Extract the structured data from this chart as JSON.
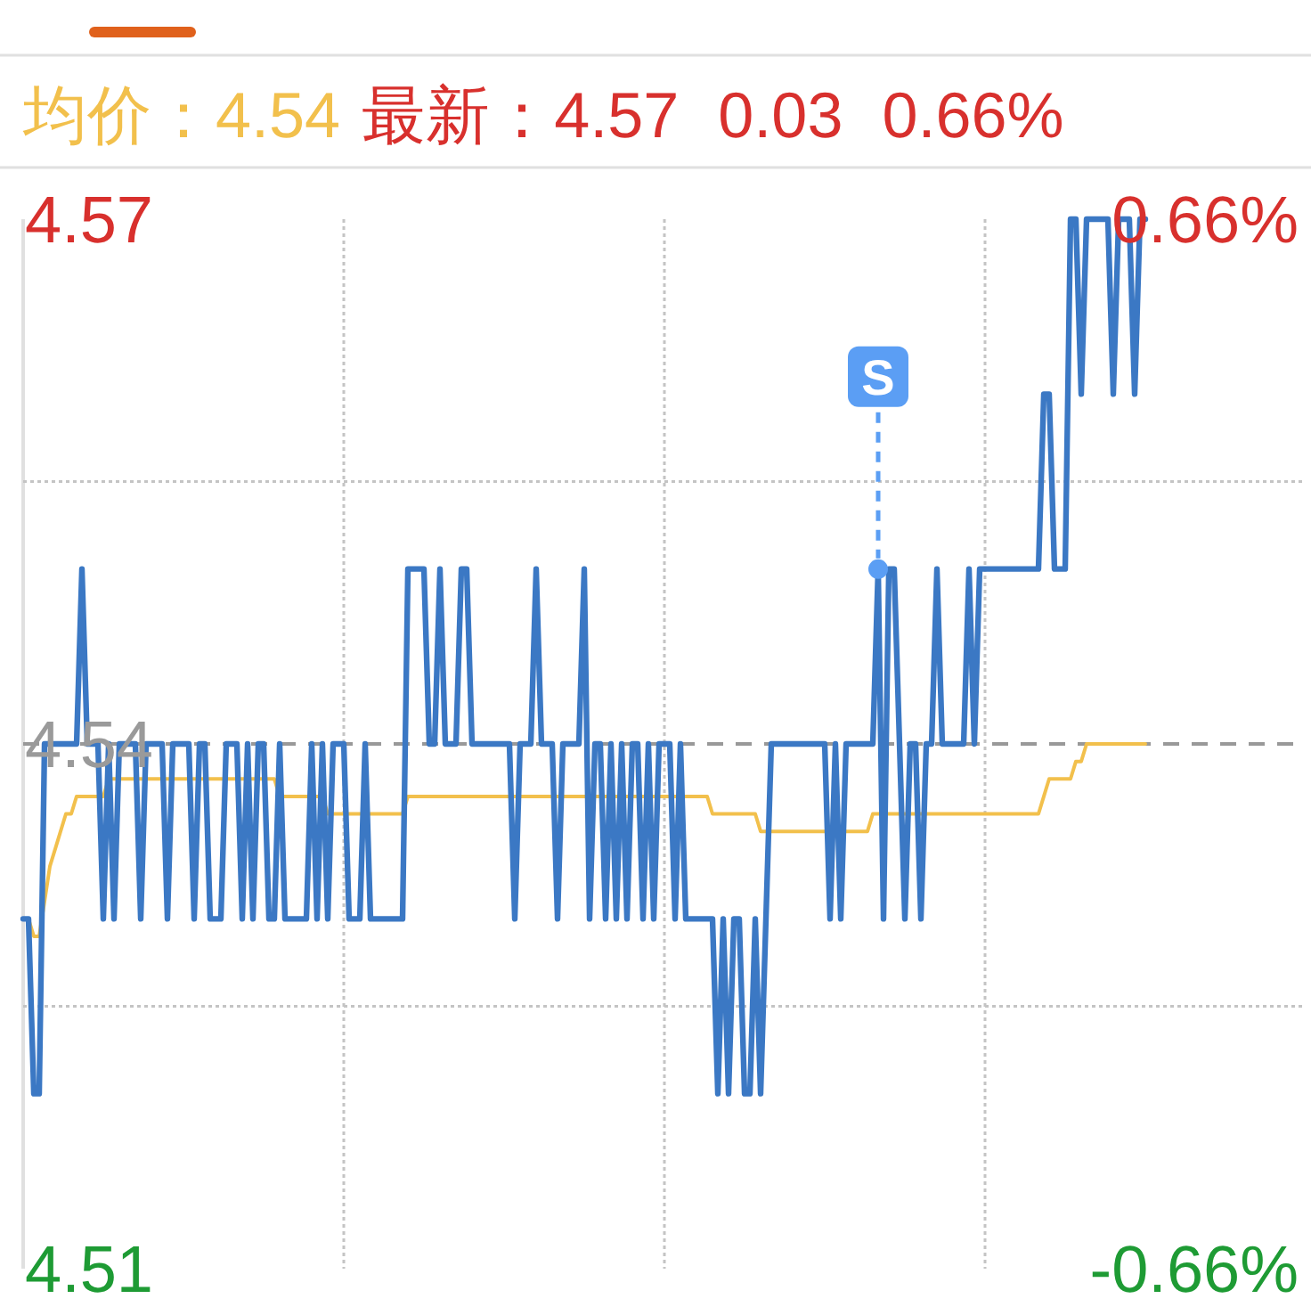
{
  "chart_data": {
    "type": "line",
    "annotations": [
      "均价：4.54",
      "最新：4.57",
      "0.03",
      "0.66%"
    ],
    "categories": [
      null,
      null,
      null,
      null,
      null,
      null,
      null,
      null,
      null,
      null,
      null,
      null,
      null,
      null,
      null,
      null,
      null,
      null,
      null,
      null,
      null,
      null,
      null,
      null,
      null,
      null,
      null,
      null,
      null,
      null,
      null,
      null,
      null,
      null,
      null,
      null,
      null,
      null,
      null,
      null,
      null,
      null,
      null,
      null,
      null,
      null,
      null,
      null,
      null,
      null,
      null,
      null,
      null,
      null,
      null,
      null,
      null,
      null,
      null,
      null,
      null,
      null,
      null,
      null,
      null,
      null,
      null,
      null,
      null,
      null,
      null,
      null,
      null,
      null,
      null,
      null,
      null,
      null,
      null,
      null,
      null,
      null,
      null,
      null,
      null,
      null,
      null,
      null,
      null,
      null,
      null,
      null,
      null,
      null,
      null,
      null,
      null,
      null,
      null,
      null,
      null,
      null,
      null,
      null,
      null,
      null,
      null,
      null,
      null,
      null,
      null,
      null,
      null,
      null,
      null,
      null,
      null,
      null,
      null,
      null,
      null,
      null,
      null,
      null,
      null,
      null,
      null,
      null,
      null,
      null,
      null,
      null,
      null,
      null,
      null,
      null,
      null,
      null,
      null,
      null,
      null,
      null,
      null,
      null,
      null,
      null,
      null,
      null,
      null,
      null,
      null,
      null,
      null,
      null,
      null,
      null,
      null,
      null,
      null,
      null,
      null,
      null,
      null,
      null,
      null,
      null,
      null,
      null,
      null,
      null,
      null,
      null,
      null,
      null,
      null,
      null,
      null,
      null,
      null,
      null,
      null,
      null,
      null,
      null,
      null,
      null,
      null,
      null,
      null,
      null,
      null,
      null,
      null,
      null,
      null,
      null,
      null,
      null,
      null,
      null,
      null,
      null,
      null,
      null,
      null,
      null,
      null,
      null,
      null,
      null,
      null,
      null,
      null,
      null,
      null,
      null,
      null,
      null,
      null,
      null,
      null,
      null,
      null,
      null,
      null,
      null,
      null,
      null,
      null,
      null,
      null,
      null,
      null,
      null,
      null,
      null,
      null,
      null,
      null,
      null,
      null
    ],
    "series": [
      {
        "type": "line",
        "color": "#f2c04c",
        "values": [
          4.53,
          4.53,
          4.529,
          4.529,
          4.531,
          4.533,
          4.534,
          4.535,
          4.536,
          4.536,
          4.537,
          4.537,
          4.537,
          4.537,
          4.537,
          4.537,
          4.538,
          4.538,
          4.538,
          4.538,
          4.538,
          4.538,
          4.538,
          4.538,
          4.538,
          4.538,
          4.538,
          4.538,
          4.538,
          4.538,
          4.538,
          4.538,
          4.538,
          4.538,
          4.538,
          4.538,
          4.538,
          4.538,
          4.538,
          4.538,
          4.538,
          4.538,
          4.538,
          4.538,
          4.538,
          4.538,
          4.538,
          4.538,
          4.537,
          4.537,
          4.537,
          4.537,
          4.537,
          4.537,
          4.537,
          4.537,
          4.537,
          4.536,
          4.536,
          4.536,
          4.536,
          4.536,
          4.536,
          4.536,
          4.536,
          4.536,
          4.536,
          4.536,
          4.536,
          4.536,
          4.536,
          4.536,
          4.537,
          4.537,
          4.537,
          4.537,
          4.537,
          4.537,
          4.537,
          4.537,
          4.537,
          4.537,
          4.537,
          4.537,
          4.537,
          4.537,
          4.537,
          4.537,
          4.537,
          4.537,
          4.537,
          4.537,
          4.537,
          4.537,
          4.537,
          4.537,
          4.537,
          4.537,
          4.537,
          4.537,
          4.537,
          4.537,
          4.537,
          4.537,
          4.537,
          4.537,
          4.537,
          4.537,
          4.537,
          4.537,
          4.537,
          4.537,
          4.537,
          4.537,
          4.537,
          4.537,
          4.537,
          4.537,
          4.537,
          4.537,
          4.537,
          4.537,
          4.537,
          4.537,
          4.537,
          4.537,
          4.537,
          4.537,
          4.537,
          4.536,
          4.536,
          4.536,
          4.536,
          4.536,
          4.536,
          4.536,
          4.536,
          4.536,
          4.535,
          4.535,
          4.535,
          4.535,
          4.535,
          4.535,
          4.535,
          4.535,
          4.535,
          4.535,
          4.535,
          4.535,
          4.535,
          4.535,
          4.535,
          4.535,
          4.535,
          4.535,
          4.535,
          4.535,
          4.535,
          4.536,
          4.536,
          4.536,
          4.536,
          4.536,
          4.536,
          4.536,
          4.536,
          4.536,
          4.536,
          4.536,
          4.536,
          4.536,
          4.536,
          4.536,
          4.536,
          4.536,
          4.536,
          4.536,
          4.536,
          4.536,
          4.536,
          4.536,
          4.536,
          4.536,
          4.536,
          4.536,
          4.536,
          4.536,
          4.536,
          4.536,
          4.536,
          4.537,
          4.538,
          4.538,
          4.538,
          4.538,
          4.538,
          4.539,
          4.539,
          4.54,
          4.54,
          4.54,
          4.54,
          4.54,
          4.54,
          4.54,
          4.54,
          4.54,
          4.54,
          4.54,
          4.54,
          null,
          null,
          null,
          null,
          null,
          null,
          null,
          null,
          null,
          null,
          null,
          null,
          null,
          null,
          null,
          null,
          null,
          null,
          null,
          null,
          null,
          null,
          null,
          null,
          null,
          null,
          null,
          null,
          null,
          null
        ]
      },
      {
        "type": "line",
        "color": "#3b78c4",
        "values": [
          4.53,
          4.53,
          4.52,
          4.52,
          4.54,
          4.54,
          4.54,
          4.54,
          4.54,
          4.54,
          4.54,
          4.55,
          4.54,
          4.54,
          4.54,
          4.53,
          4.54,
          4.53,
          4.54,
          4.54,
          4.54,
          4.54,
          4.53,
          4.54,
          4.54,
          4.54,
          4.54,
          4.53,
          4.54,
          4.54,
          4.54,
          4.54,
          4.53,
          4.54,
          4.54,
          4.53,
          4.53,
          4.53,
          4.54,
          4.54,
          4.54,
          4.53,
          4.54,
          4.53,
          4.54,
          4.54,
          4.53,
          4.53,
          4.54,
          4.53,
          4.53,
          4.53,
          4.53,
          4.53,
          4.54,
          4.53,
          4.54,
          4.53,
          4.54,
          4.54,
          4.54,
          4.53,
          4.53,
          4.53,
          4.54,
          4.53,
          4.53,
          4.53,
          4.53,
          4.53,
          4.53,
          4.53,
          4.55,
          4.55,
          4.55,
          4.55,
          4.54,
          4.54,
          4.55,
          4.54,
          4.54,
          4.54,
          4.55,
          4.55,
          4.54,
          4.54,
          4.54,
          4.54,
          4.54,
          4.54,
          4.54,
          4.54,
          4.53,
          4.54,
          4.54,
          4.54,
          4.55,
          4.54,
          4.54,
          4.54,
          4.53,
          4.54,
          4.54,
          4.54,
          4.54,
          4.55,
          4.53,
          4.54,
          4.54,
          4.53,
          4.54,
          4.53,
          4.54,
          4.53,
          4.54,
          4.54,
          4.53,
          4.54,
          4.53,
          4.54,
          4.54,
          4.54,
          4.53,
          4.54,
          4.53,
          4.53,
          4.53,
          4.53,
          4.53,
          4.53,
          4.52,
          4.53,
          4.52,
          4.53,
          4.53,
          4.52,
          4.52,
          4.53,
          4.52,
          4.53,
          4.54,
          4.54,
          4.54,
          4.54,
          4.54,
          4.54,
          4.54,
          4.54,
          4.54,
          4.54,
          4.54,
          4.53,
          4.54,
          4.53,
          4.54,
          4.54,
          4.54,
          4.54,
          4.54,
          4.54,
          4.55,
          4.53,
          4.55,
          4.55,
          4.54,
          4.53,
          4.54,
          4.54,
          4.53,
          4.54,
          4.54,
          4.55,
          4.54,
          4.54,
          4.54,
          4.54,
          4.54,
          4.55,
          4.54,
          4.55,
          4.55,
          4.55,
          4.55,
          4.55,
          4.55,
          4.55,
          4.55,
          4.55,
          4.55,
          4.55,
          4.55,
          4.56,
          4.56,
          4.55,
          4.55,
          4.55,
          4.57,
          4.57,
          4.56,
          4.57,
          4.57,
          4.57,
          4.57,
          4.57,
          4.56,
          4.57,
          4.57,
          4.57,
          4.56,
          4.57,
          4.57,
          null,
          null,
          null,
          null,
          null,
          null,
          null,
          null,
          null,
          null,
          null,
          null,
          null,
          null,
          null,
          null,
          null,
          null,
          null,
          null,
          null,
          null,
          null,
          null,
          null,
          null,
          null,
          null,
          null,
          null
        ]
      },
      {
        "type": "scatter",
        "name": "S",
        "color": "#5b9ef4",
        "values": [
          null,
          null,
          null,
          null,
          null,
          null,
          null,
          null,
          null,
          null,
          null,
          null,
          null,
          null,
          null,
          null,
          null,
          null,
          null,
          null,
          null,
          null,
          null,
          null,
          null,
          null,
          null,
          null,
          null,
          null,
          null,
          null,
          null,
          null,
          null,
          null,
          null,
          null,
          null,
          null,
          null,
          null,
          null,
          null,
          null,
          null,
          null,
          null,
          null,
          null,
          null,
          null,
          null,
          null,
          null,
          null,
          null,
          null,
          null,
          null,
          null,
          null,
          null,
          null,
          null,
          null,
          null,
          null,
          null,
          null,
          null,
          null,
          null,
          null,
          null,
          null,
          null,
          null,
          null,
          null,
          null,
          null,
          null,
          null,
          null,
          null,
          null,
          null,
          null,
          null,
          null,
          null,
          null,
          null,
          null,
          null,
          null,
          null,
          null,
          null,
          null,
          null,
          null,
          null,
          null,
          null,
          null,
          null,
          null,
          null,
          null,
          null,
          null,
          null,
          null,
          null,
          null,
          null,
          null,
          null,
          null,
          null,
          null,
          null,
          null,
          null,
          null,
          null,
          null,
          null,
          null,
          null,
          null,
          null,
          null,
          null,
          null,
          null,
          null,
          null,
          null,
          null,
          null,
          null,
          null,
          null,
          null,
          null,
          null,
          null,
          null,
          null,
          null,
          null,
          null,
          null,
          null,
          null,
          null,
          null,
          4.55,
          null,
          null,
          null,
          null,
          null,
          null,
          null,
          null,
          null,
          null,
          null,
          null,
          null,
          null,
          null,
          null,
          null,
          null,
          null,
          null,
          null,
          null,
          null,
          null,
          null,
          null,
          null,
          null,
          null,
          null,
          null,
          null,
          null,
          null,
          null,
          null,
          null,
          null,
          null,
          null,
          null,
          null,
          null,
          null,
          null,
          null,
          null,
          null,
          null,
          null,
          null,
          null,
          null,
          null,
          null,
          null,
          null,
          null,
          null,
          null,
          null,
          null,
          null,
          null,
          null,
          null,
          null,
          null,
          null,
          null,
          null,
          null,
          null,
          null,
          null,
          null,
          null,
          null,
          null,
          null
        ]
      }
    ],
    "ylim": [
      4.51,
      4.57
    ],
    "yticks": [
      4.57,
      {
        "value": 4.555,
        "label": null
      },
      4.54,
      {
        "value": 4.525,
        "label": null
      },
      4.51
    ],
    "y2lim": [
      -0.66,
      0.66
    ],
    "y2ticks": [
      {
        "value": 0.66,
        "label": "0.66%"
      },
      {
        "value": -0.66,
        "label": "-0.66%"
      }
    ],
    "ref_lines": [
      {
        "axis": "y",
        "value": 4.54,
        "color": "#999999",
        "line_style": "dashed"
      }
    ],
    "grid": true
  }
}
